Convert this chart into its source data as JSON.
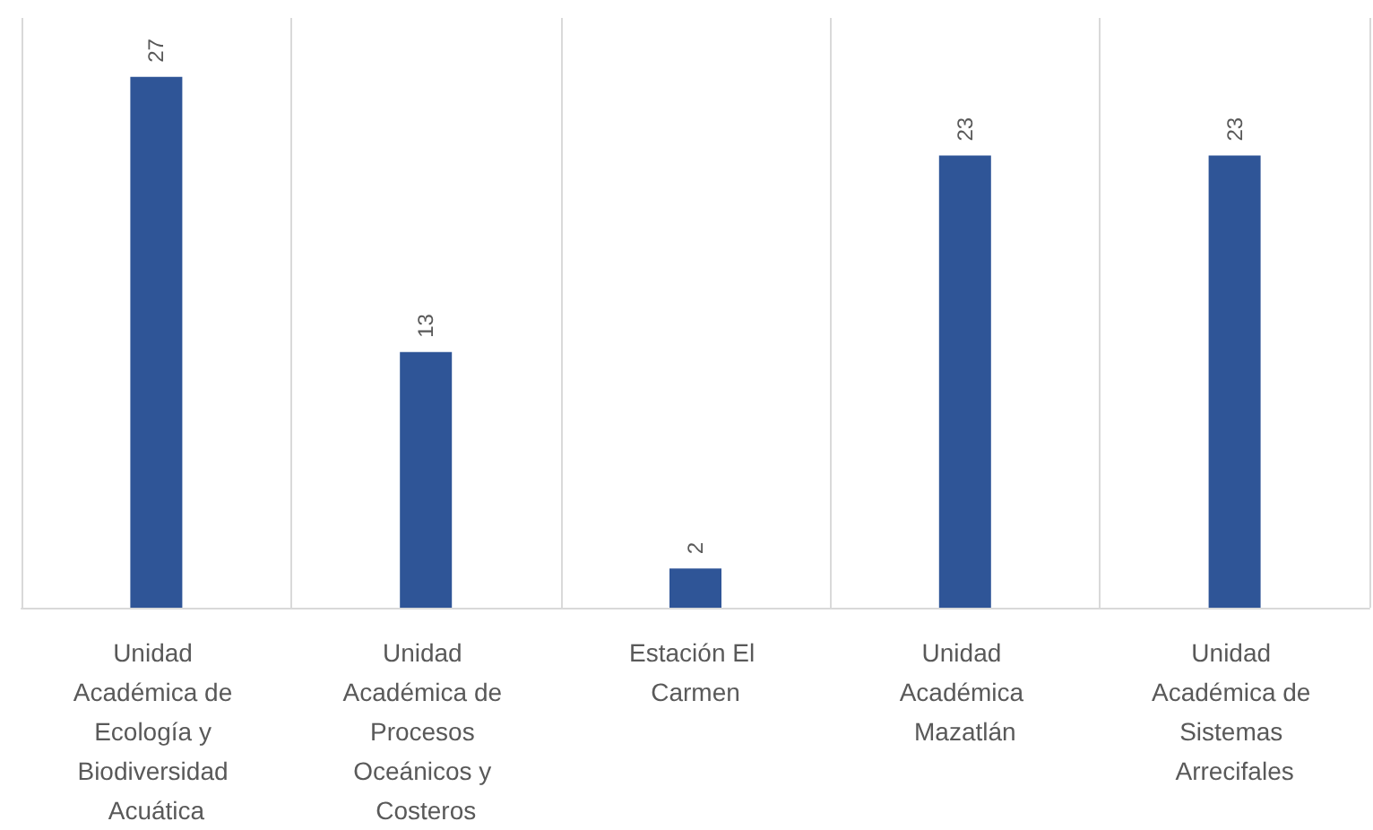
{
  "chart_data": {
    "type": "bar",
    "categories": [
      "Unidad Académica de Ecología y Biodiversidad Acuática",
      "Unidad Académica de Procesos Oceánicos y Costeros",
      "Estación El Carmen",
      "Unidad Académica Mazatlán",
      "Unidad Académica de Sistemas Arrecifales"
    ],
    "values": [
      27,
      13,
      2,
      23,
      23
    ],
    "color": "#2f5597",
    "data_labels": true,
    "grid": "x"
  }
}
